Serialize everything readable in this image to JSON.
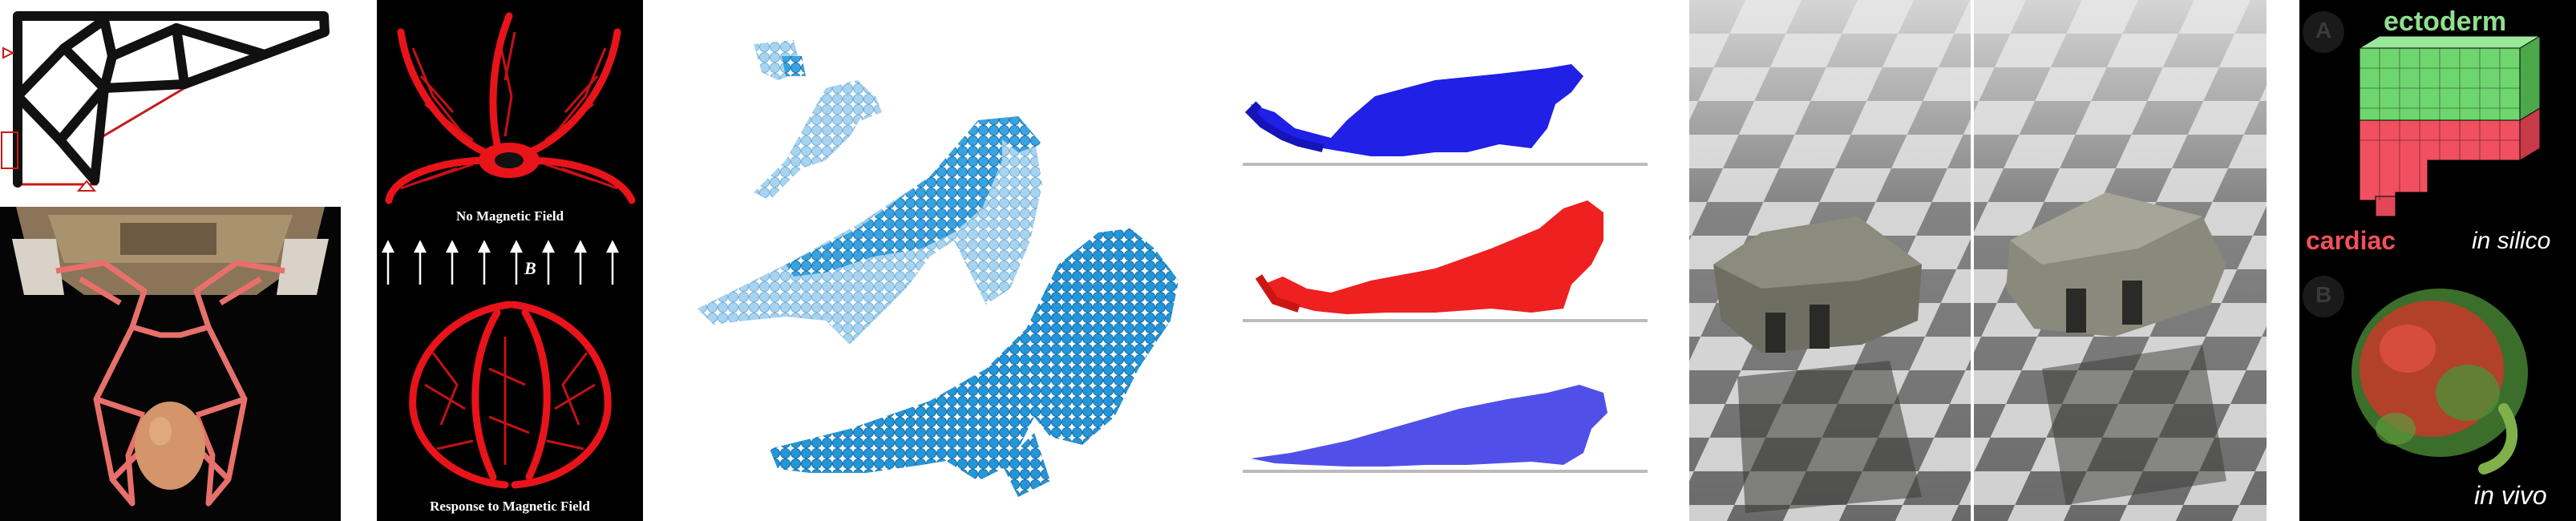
{
  "colors": {
    "structure_red": "#e8141a",
    "particle_light": "#9fcdea",
    "particle_dark": "#1f92d6",
    "cheetah_blue": "#2a2ae6",
    "cheetah_red": "#ee2020",
    "cheetah_lightblue": "#5b5be6",
    "ectoderm_green": "#8fe08f",
    "cardiac_red": "#f0505a"
  },
  "panels": [
    {
      "name": "topology-optimization",
      "icons": [
        "truss-structure",
        "robot-gripper-egg"
      ]
    },
    {
      "name": "magnetic-soft-robot",
      "labels": {
        "no_field": "No Magnetic Field",
        "field_symbol": "B",
        "response": "Response to Magnetic Field"
      }
    },
    {
      "name": "particle-simulation",
      "icons": [
        "particle-cloud-light",
        "particle-cloud-dark"
      ]
    },
    {
      "name": "cheetah-morphology",
      "icons": [
        "blue-cheetah",
        "red-cheetah",
        "lightblue-cheetah"
      ]
    },
    {
      "name": "soft-robot-checkerboard",
      "icons": [
        "robot-on-checkerboard-left",
        "robot-on-checkerboard-right"
      ]
    },
    {
      "name": "xenobot",
      "labels": {
        "ectoderm": "ectoderm",
        "cardiac": "cardiac",
        "in_silico": "in silico",
        "in_vivo": "in vivo",
        "sub_a": "A",
        "sub_b": "B"
      }
    }
  ]
}
